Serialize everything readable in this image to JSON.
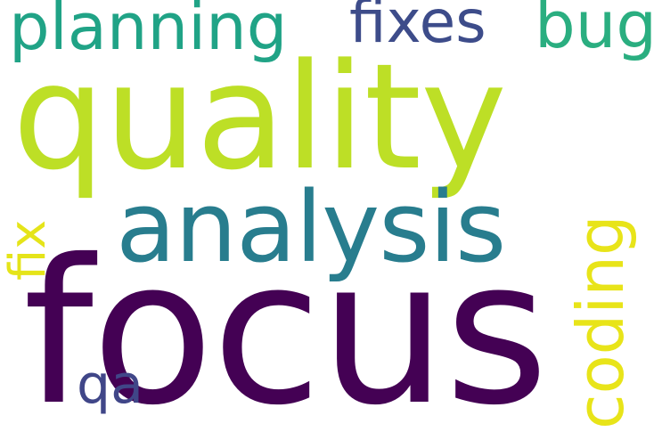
{
  "word_cloud": {
    "words": [
      {
        "text": "planning",
        "color": "#20a386"
      },
      {
        "text": "fixes",
        "color": "#3d4c8a"
      },
      {
        "text": "bug",
        "color": "#2aae80"
      },
      {
        "text": "quality",
        "color": "#bddf26"
      },
      {
        "text": "analysis",
        "color": "#287d8e"
      },
      {
        "text": "fix",
        "color": "#e5e419"
      },
      {
        "text": "coding",
        "color": "#e8e419"
      },
      {
        "text": "focus",
        "color": "#440154"
      },
      {
        "text": "qa",
        "color": "#404688"
      }
    ]
  }
}
